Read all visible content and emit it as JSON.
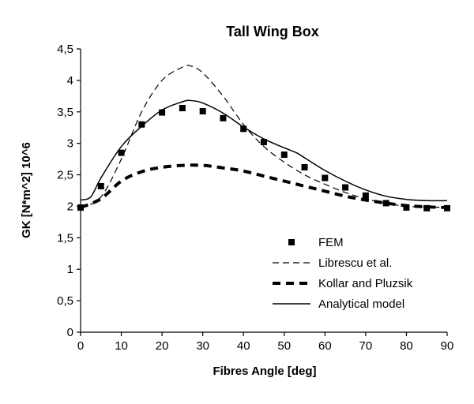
{
  "chart_data": {
    "type": "line",
    "title": "Tall Wing Box",
    "xlabel": "Fibres Angle [deg]",
    "ylabel": "GK [N*m^2] 10^6",
    "xlim": [
      0,
      90
    ],
    "ylim": [
      0,
      4.5
    ],
    "x_ticks": [
      0,
      10,
      20,
      30,
      40,
      50,
      60,
      70,
      80,
      90
    ],
    "x_tick_labels": [
      "0",
      "10",
      "20",
      "30",
      "40",
      "50",
      "60",
      "70",
      "80",
      "90"
    ],
    "y_ticks": [
      0,
      0.5,
      1,
      1.5,
      2,
      2.5,
      3,
      3.5,
      4,
      4.5
    ],
    "y_tick_labels": [
      "0",
      "0,5",
      "1",
      "1,5",
      "2",
      "2,5",
      "3",
      "3,5",
      "4",
      "4,5"
    ],
    "grid": false,
    "legend_position": "bottom-right",
    "series": [
      {
        "name": "FEM",
        "style": "markers",
        "color": "#000000",
        "x": [
          0,
          5,
          10,
          15,
          20,
          25,
          30,
          35,
          40,
          45,
          50,
          55,
          60,
          65,
          70,
          75,
          80,
          85,
          90
        ],
        "y": [
          1.98,
          2.32,
          2.85,
          3.3,
          3.49,
          3.56,
          3.51,
          3.4,
          3.23,
          3.02,
          2.82,
          2.62,
          2.45,
          2.3,
          2.17,
          2.05,
          1.98,
          1.97,
          1.97
        ]
      },
      {
        "name": "Librescu et al.",
        "style": "dashed",
        "color": "#000000",
        "x": [
          0,
          5,
          10,
          15,
          20,
          25,
          27,
          30,
          35,
          40,
          45,
          50,
          55,
          60,
          65,
          70,
          75,
          80,
          85,
          90
        ],
        "y": [
          1.97,
          2.15,
          2.75,
          3.5,
          4.0,
          4.21,
          4.23,
          4.12,
          3.75,
          3.3,
          2.95,
          2.7,
          2.5,
          2.35,
          2.22,
          2.12,
          2.05,
          2.0,
          1.99,
          1.98
        ]
      },
      {
        "name": "Kollar and Pluzsik",
        "style": "thick-dashed",
        "color": "#000000",
        "x": [
          0,
          5,
          10,
          15,
          20,
          25,
          30,
          35,
          40,
          45,
          50,
          55,
          60,
          65,
          70,
          75,
          80,
          85,
          90
        ],
        "y": [
          1.98,
          2.12,
          2.4,
          2.55,
          2.62,
          2.65,
          2.65,
          2.61,
          2.56,
          2.48,
          2.4,
          2.32,
          2.24,
          2.16,
          2.1,
          2.05,
          2.01,
          1.99,
          1.98
        ]
      },
      {
        "name": "Analytical model",
        "style": "solid",
        "color": "#000000",
        "x": [
          0,
          2.5,
          5,
          10,
          15,
          20,
          25,
          27,
          30,
          35,
          40,
          45,
          50,
          53,
          55,
          60,
          65,
          70,
          75,
          80,
          85,
          90
        ],
        "y": [
          2.1,
          2.15,
          2.45,
          2.95,
          3.27,
          3.53,
          3.66,
          3.68,
          3.64,
          3.48,
          3.26,
          3.07,
          2.93,
          2.85,
          2.77,
          2.57,
          2.4,
          2.26,
          2.16,
          2.11,
          2.09,
          2.09
        ]
      }
    ]
  }
}
